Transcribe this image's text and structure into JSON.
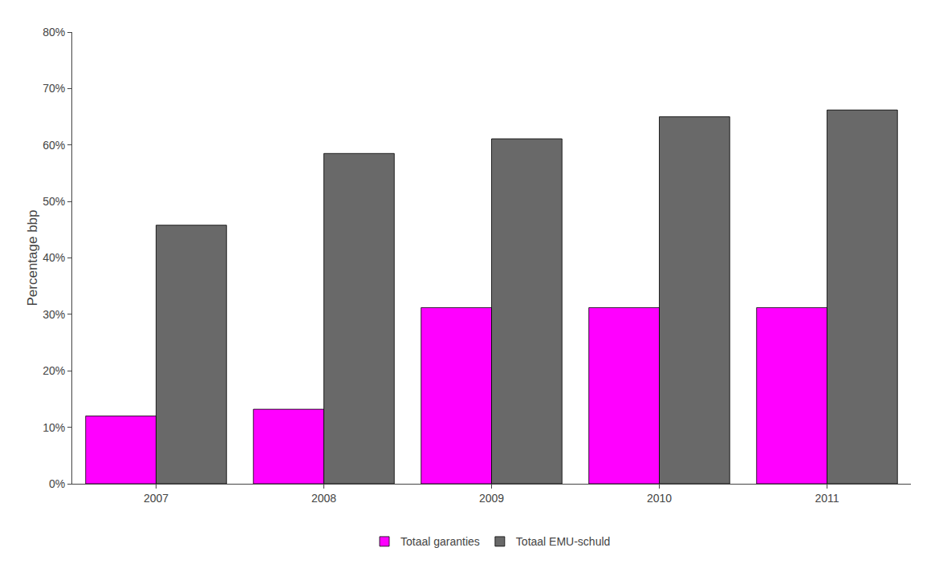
{
  "chart_data": {
    "type": "bar",
    "categories": [
      "2007",
      "2008",
      "2009",
      "2010",
      "2011"
    ],
    "series": [
      {
        "name": "Totaal garanties",
        "color": "#FF00FF",
        "values": [
          12.0,
          13.2,
          31.2,
          31.2,
          31.2
        ]
      },
      {
        "name": "Totaal EMU-schuld",
        "color": "#696969",
        "values": [
          45.8,
          58.5,
          61.1,
          65.0,
          66.2
        ]
      }
    ],
    "ylabel": "Percentage bbp",
    "ylim": [
      0,
      80
    ],
    "yticks": [
      {
        "value": 0,
        "label": "0%"
      },
      {
        "value": 10,
        "label": "10%"
      },
      {
        "value": 20,
        "label": "20%"
      },
      {
        "value": 30,
        "label": "30%"
      },
      {
        "value": 40,
        "label": "40%"
      },
      {
        "value": 50,
        "label": "50%"
      },
      {
        "value": 60,
        "label": "60%"
      },
      {
        "value": 70,
        "label": "70%"
      },
      {
        "value": 80,
        "label": "80%"
      }
    ],
    "grid": false,
    "legend": "bottom"
  }
}
